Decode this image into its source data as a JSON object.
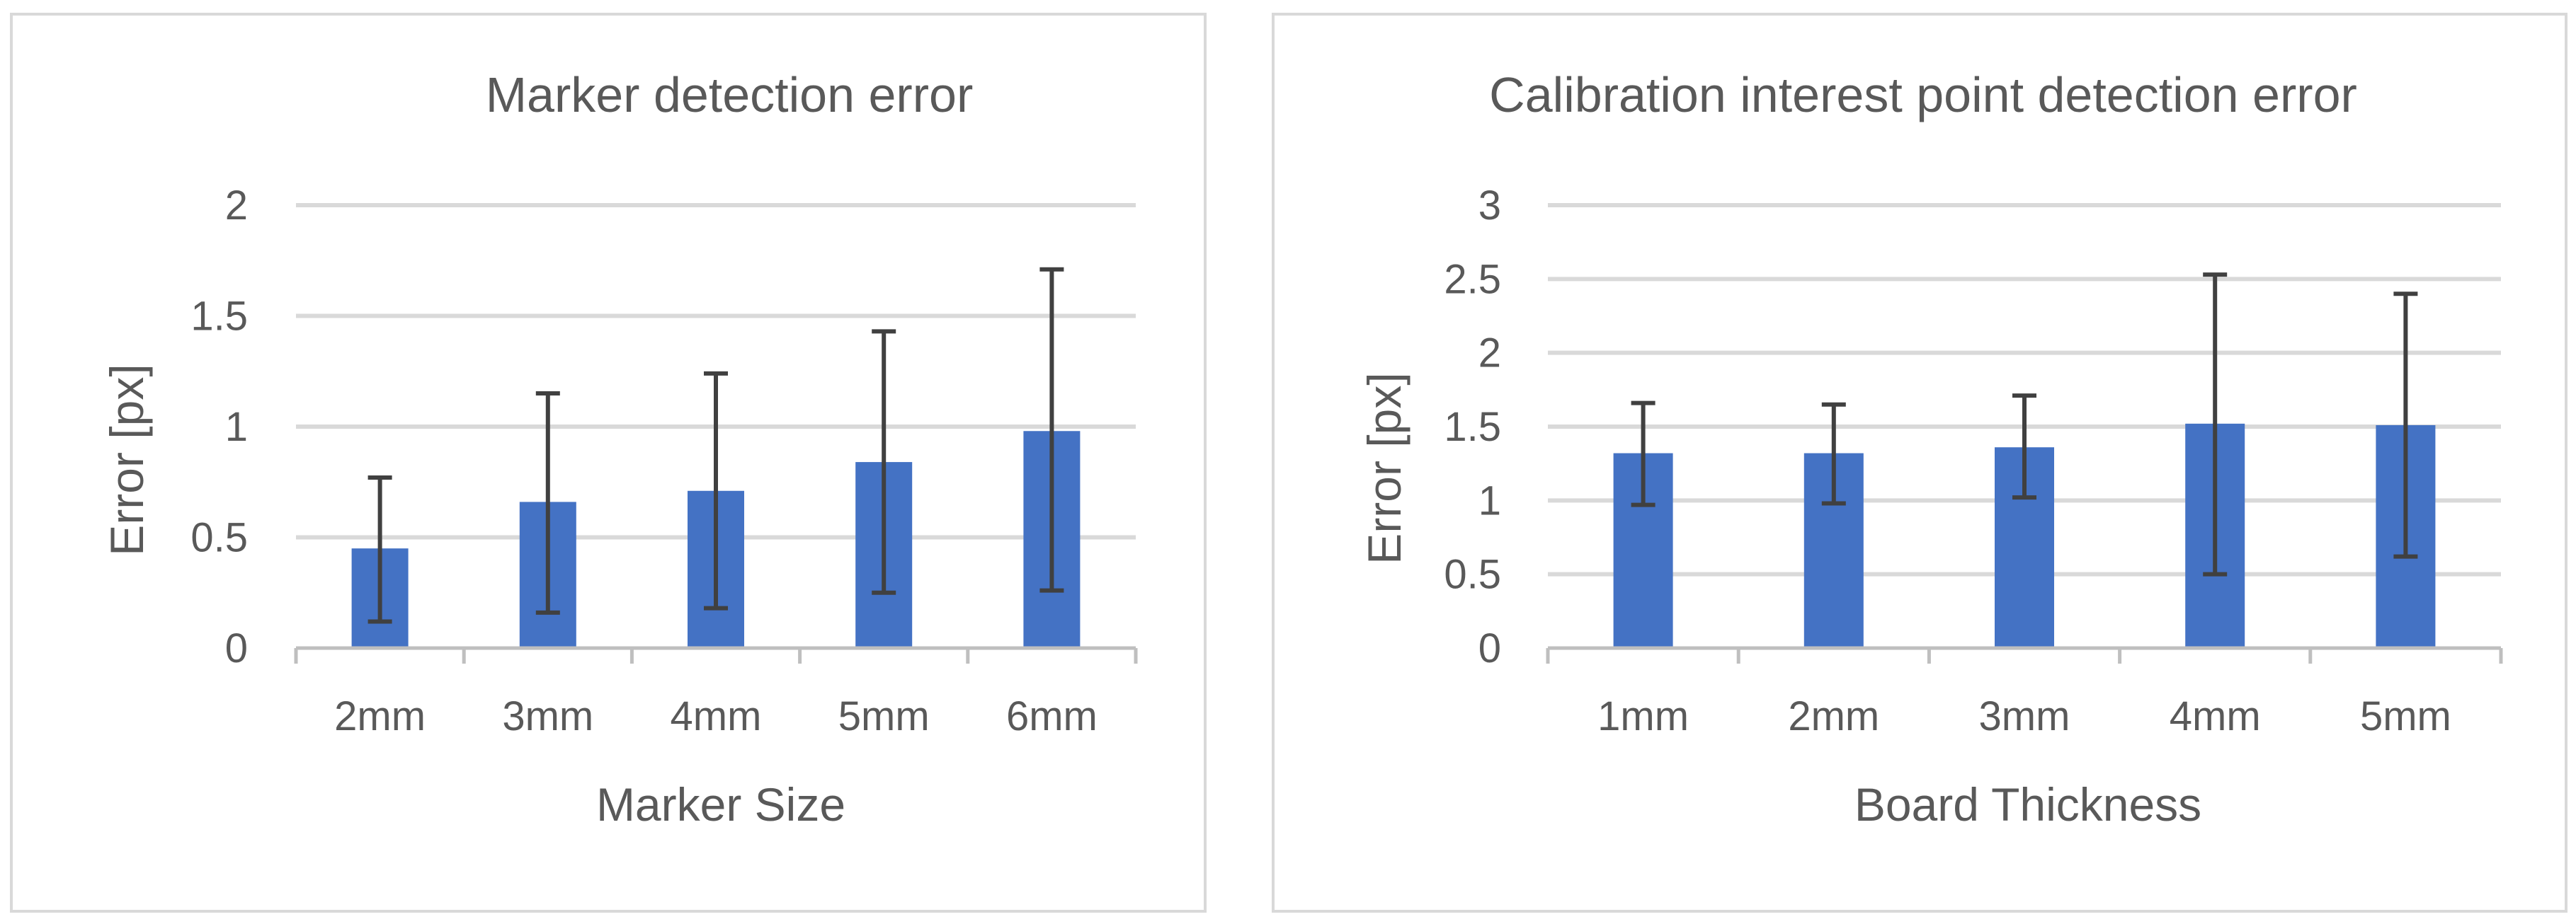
{
  "chart_data": [
    {
      "type": "bar",
      "title": "Marker detection error",
      "xlabel": "Marker Size",
      "ylabel": "Error [px]",
      "categories": [
        "2mm",
        "3mm",
        "4mm",
        "5mm",
        "6mm"
      ],
      "values": [
        0.45,
        0.66,
        0.71,
        0.84,
        0.98
      ],
      "error_low": [
        0.12,
        0.16,
        0.18,
        0.25,
        0.26
      ],
      "error_high": [
        0.77,
        1.15,
        1.24,
        1.43,
        1.71
      ],
      "ylim": [
        0,
        2
      ],
      "yticks": [
        0,
        0.5,
        1,
        1.5,
        2
      ],
      "ytick_labels": [
        "0",
        "0.5",
        "1",
        "1.5",
        "2"
      ],
      "grid": true,
      "color": "#4472c4"
    },
    {
      "type": "bar",
      "title": "Calibration interest point detection error",
      "xlabel": "Board Thickness",
      "ylabel": "Error [px]",
      "categories": [
        "1mm",
        "2mm",
        "3mm",
        "4mm",
        "5mm"
      ],
      "values": [
        1.32,
        1.32,
        1.36,
        1.52,
        1.51
      ],
      "error_low": [
        0.97,
        0.98,
        1.02,
        0.5,
        0.62
      ],
      "error_high": [
        1.66,
        1.65,
        1.71,
        2.53,
        2.4
      ],
      "ylim": [
        0,
        3
      ],
      "yticks": [
        0,
        0.5,
        1,
        1.5,
        2,
        2.5,
        3
      ],
      "ytick_labels": [
        "0",
        "0.5",
        "1",
        "1.5",
        "2",
        "2.5",
        "3"
      ],
      "grid": true,
      "color": "#4472c4"
    }
  ]
}
